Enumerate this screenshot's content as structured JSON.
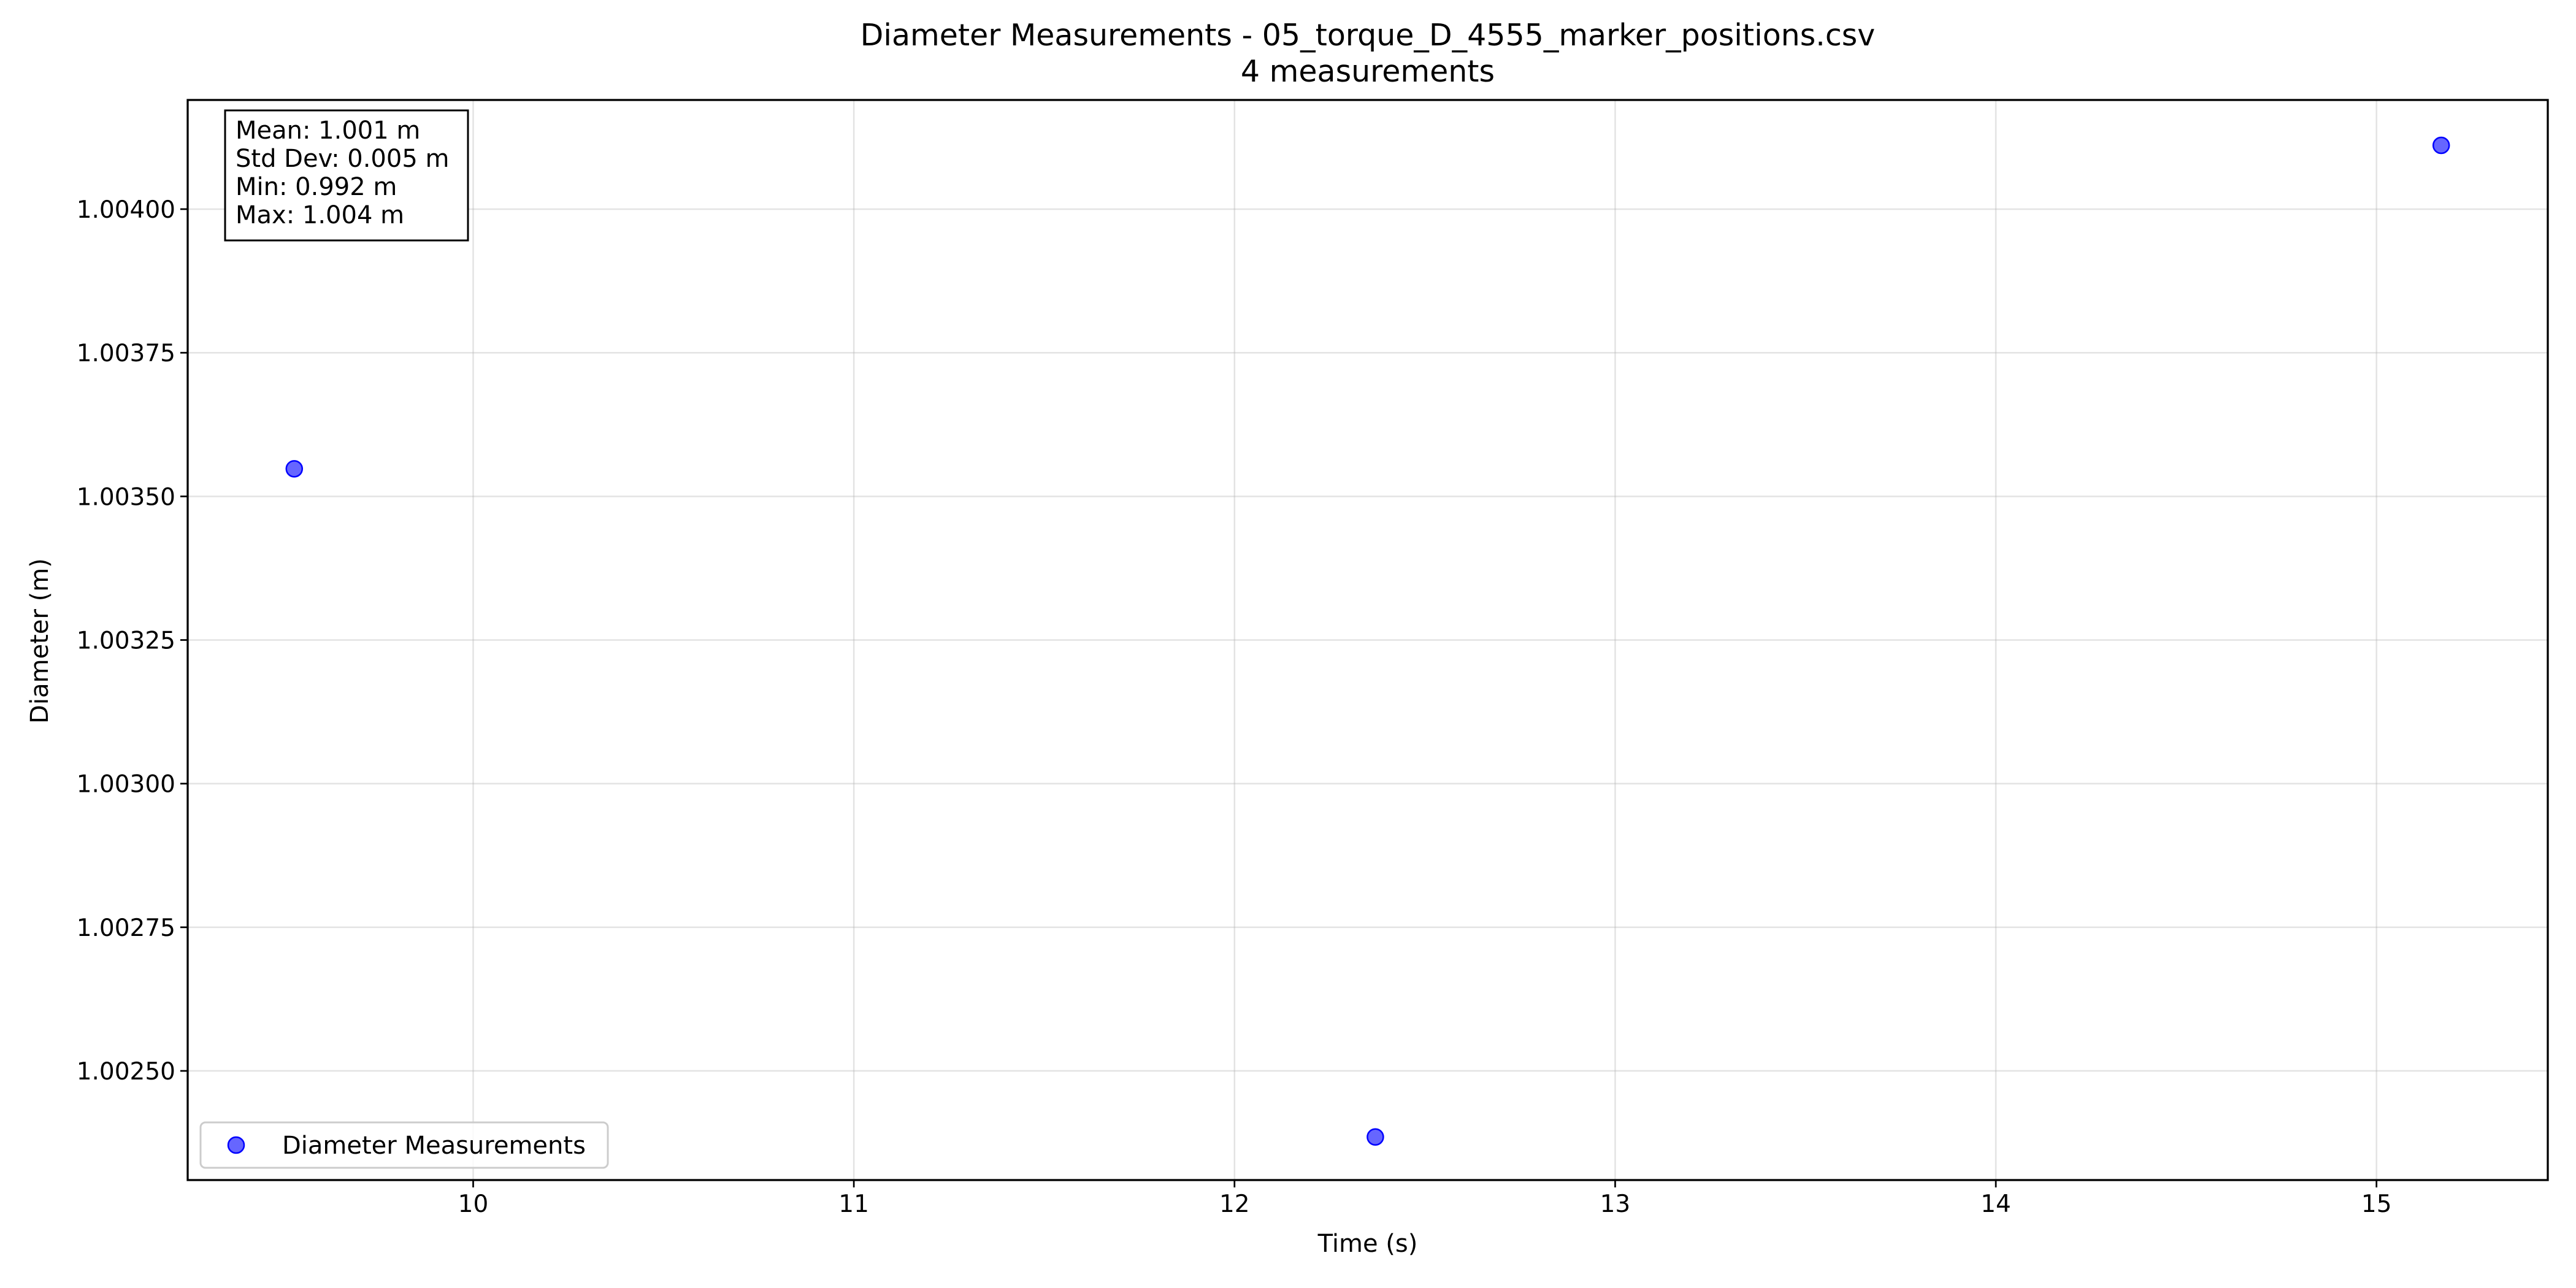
{
  "chart_data": {
    "type": "scatter",
    "title": "Diameter Measurements - 05_torque_D_4555_marker_positions.csv",
    "subtitle": "4 measurements",
    "xlabel": "Time (s)",
    "ylabel": "Diameter (m)",
    "xlim": [
      9.25,
      15.45
    ],
    "ylim": [
      1.00231,
      1.00419
    ],
    "x_ticks": [
      10,
      11,
      12,
      13,
      14,
      15
    ],
    "x_tick_labels": [
      "10",
      "11",
      "12",
      "13",
      "14",
      "15"
    ],
    "y_ticks": [
      1.0025,
      1.00275,
      1.003,
      1.00325,
      1.0035,
      1.00375,
      1.004
    ],
    "y_tick_labels": [
      "1.00250",
      "1.00275",
      "1.00300",
      "1.00325",
      "1.00350",
      "1.00375",
      "1.00400"
    ],
    "grid": true,
    "legend_position": "lower-left",
    "series": [
      {
        "name": "Diameter Measurements",
        "color": "#0000ff",
        "points": [
          {
            "x": 9.53,
            "y": 1.003548
          },
          {
            "x": 12.37,
            "y": 1.002385
          },
          {
            "x": 15.17,
            "y": 1.004111
          }
        ]
      }
    ],
    "stats_box": {
      "lines": [
        "Mean: 1.001 m",
        "Std Dev: 0.005 m",
        "Min: 0.992 m",
        "Max: 1.004 m"
      ]
    }
  }
}
